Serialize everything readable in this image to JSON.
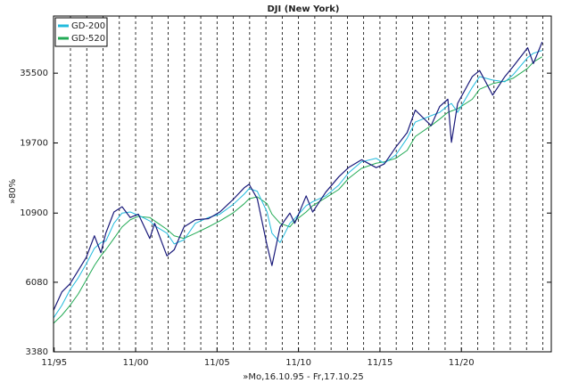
{
  "chart_data": {
    "type": "line",
    "title": "DJI (New York)",
    "xlabel": "»Mo,16.10.95 - Fr,17.10.25",
    "ylabel": "»80%",
    "log_y": true,
    "legend": "upper left",
    "x": [
      1995.79,
      1996.3,
      1996.8,
      1997.3,
      1997.8,
      1998.3,
      1998.7,
      1999.0,
      1999.5,
      2000.0,
      2000.5,
      2001.0,
      2001.7,
      2002.0,
      2002.75,
      2003.2,
      2003.8,
      2004.5,
      2005.3,
      2006.0,
      2006.8,
      2007.5,
      2007.8,
      2008.3,
      2008.9,
      2009.2,
      2009.7,
      2010.3,
      2010.6,
      2011.3,
      2011.7,
      2012.5,
      2013.3,
      2013.9,
      2014.7,
      2015.6,
      2016.1,
      2016.8,
      2017.5,
      2018.0,
      2018.97,
      2019.5,
      2020.0,
      2020.22,
      2020.6,
      2021.5,
      2021.95,
      2022.75,
      2023.5,
      2024.0,
      2024.9,
      2025.25,
      2025.79
    ],
    "series": [
      {
        "color": "#1a1a7a",
        "width": 1.2,
        "values": [
          4800,
          5600,
          6000,
          6700,
          7500,
          9000,
          7800,
          9200,
          11000,
          11500,
          10500,
          10800,
          8800,
          10000,
          7600,
          8000,
          9700,
          10300,
          10400,
          11000,
          12200,
          13500,
          13900,
          12300,
          8300,
          7000,
          9700,
          10900,
          10000,
          12600,
          11000,
          13000,
          14800,
          16000,
          17100,
          16000,
          16500,
          19000,
          21500,
          26000,
          22800,
          26800,
          28500,
          19800,
          27500,
          34500,
          36300,
          29500,
          34500,
          37500,
          44000,
          38500,
          46200
        ]
      },
      {
        "name": "GD-200",
        "color": "#22bbdd",
        "width": 1,
        "values": [
          4500,
          5000,
          5700,
          6300,
          7100,
          8100,
          8500,
          8600,
          10000,
          10900,
          11000,
          10700,
          10200,
          9800,
          9200,
          8400,
          8700,
          10000,
          10500,
          10800,
          11700,
          12800,
          13400,
          13100,
          11000,
          9200,
          8500,
          10000,
          10400,
          11600,
          12000,
          12600,
          13800,
          15300,
          16800,
          17300,
          16600,
          17800,
          20500,
          23500,
          24800,
          25500,
          27000,
          27500,
          25500,
          31500,
          34500,
          33500,
          33000,
          35000,
          40500,
          42000,
          43000
        ]
      },
      {
        "name": "GD-520",
        "color": "#22aa55",
        "width": 1,
        "values": [
          4300,
          4600,
          5000,
          5500,
          6200,
          7000,
          7600,
          8000,
          8800,
          9700,
          10300,
          10600,
          10500,
          10200,
          9500,
          9000,
          8800,
          9200,
          9700,
          10200,
          10900,
          11800,
          12300,
          12500,
          11800,
          10800,
          10000,
          9700,
          10200,
          11000,
          11600,
          12400,
          13300,
          14600,
          15900,
          16600,
          16800,
          17300,
          18500,
          20800,
          22800,
          24100,
          25500,
          25800,
          26300,
          28500,
          31000,
          32500,
          33200,
          34000,
          37000,
          39000,
          40800
        ]
      }
    ],
    "xlim": [
      1995.79,
      2026.35
    ],
    "xticks": [
      {
        "value": 1995.83,
        "label": "11/95"
      },
      {
        "value": 2000.83,
        "label": "11/00"
      },
      {
        "value": 2005.83,
        "label": "11/05"
      },
      {
        "value": 2010.83,
        "label": "11/10"
      },
      {
        "value": 2015.83,
        "label": "11/15"
      },
      {
        "value": 2020.83,
        "label": "11/20"
      }
    ],
    "xgrid": [
      1996.83,
      1997.83,
      1998.83,
      1999.83,
      2000.83,
      2001.83,
      2002.83,
      2003.83,
      2004.83,
      2005.83,
      2006.83,
      2007.83,
      2008.83,
      2009.83,
      2010.83,
      2011.83,
      2012.83,
      2013.83,
      2014.83,
      2015.83,
      2016.83,
      2017.83,
      2018.83,
      2019.83,
      2020.83,
      2021.83,
      2022.83,
      2023.83,
      2024.83,
      2025.83
    ],
    "ylim": [
      3380,
      57500
    ],
    "yticks": [
      3380,
      6080,
      10900,
      19700,
      35500
    ]
  }
}
